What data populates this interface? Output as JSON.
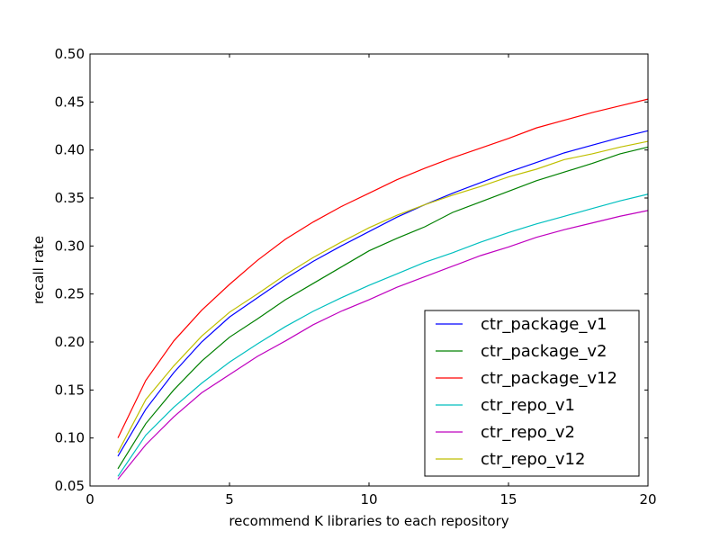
{
  "chart_data": {
    "type": "line",
    "xlabel": "recommend K libraries to each repository",
    "ylabel": "recall rate",
    "xlim": [
      0,
      20
    ],
    "ylim": [
      0.05,
      0.5
    ],
    "xticks": [
      0,
      5,
      10,
      15,
      20
    ],
    "xtick_labels": [
      "0",
      "5",
      "10",
      "15",
      "20"
    ],
    "yticks": [
      0.05,
      0.1,
      0.15,
      0.2,
      0.25,
      0.3,
      0.35,
      0.4,
      0.45,
      0.5
    ],
    "ytick_labels": [
      "0.05",
      "0.10",
      "0.15",
      "0.20",
      "0.25",
      "0.30",
      "0.35",
      "0.40",
      "0.45",
      "0.50"
    ],
    "grid": false,
    "legend_position": "lower-right",
    "x": [
      1,
      2,
      3,
      4,
      5,
      6,
      7,
      8,
      9,
      10,
      11,
      12,
      13,
      14,
      15,
      16,
      17,
      18,
      19,
      20
    ],
    "series": [
      {
        "name": "ctr_package_v1",
        "color": "#0000ff",
        "values": [
          0.081,
          0.13,
          0.168,
          0.2,
          0.226,
          0.246,
          0.266,
          0.284,
          0.3,
          0.315,
          0.33,
          0.343,
          0.355,
          0.366,
          0.377,
          0.387,
          0.397,
          0.405,
          0.413,
          0.42
        ]
      },
      {
        "name": "ctr_package_v2",
        "color": "#008000",
        "values": [
          0.068,
          0.115,
          0.15,
          0.18,
          0.205,
          0.224,
          0.244,
          0.261,
          0.278,
          0.295,
          0.308,
          0.32,
          0.335,
          0.346,
          0.357,
          0.368,
          0.377,
          0.386,
          0.396,
          0.403
        ]
      },
      {
        "name": "ctr_package_v12",
        "color": "#ff0000",
        "values": [
          0.1,
          0.16,
          0.201,
          0.233,
          0.26,
          0.285,
          0.307,
          0.325,
          0.341,
          0.355,
          0.369,
          0.381,
          0.392,
          0.402,
          0.412,
          0.423,
          0.431,
          0.439,
          0.446,
          0.453
        ]
      },
      {
        "name": "ctr_repo_v1",
        "color": "#00bfbf",
        "values": [
          0.06,
          0.103,
          0.132,
          0.157,
          0.179,
          0.198,
          0.216,
          0.232,
          0.246,
          0.259,
          0.271,
          0.283,
          0.293,
          0.304,
          0.314,
          0.323,
          0.331,
          0.339,
          0.347,
          0.354
        ]
      },
      {
        "name": "ctr_repo_v2",
        "color": "#bf00bf",
        "values": [
          0.057,
          0.093,
          0.122,
          0.147,
          0.166,
          0.185,
          0.201,
          0.218,
          0.232,
          0.244,
          0.257,
          0.268,
          0.279,
          0.29,
          0.299,
          0.309,
          0.317,
          0.324,
          0.331,
          0.337
        ]
      },
      {
        "name": "ctr_repo_v12",
        "color": "#bfbf00",
        "values": [
          0.085,
          0.14,
          0.175,
          0.206,
          0.231,
          0.25,
          0.27,
          0.288,
          0.304,
          0.319,
          0.332,
          0.343,
          0.353,
          0.362,
          0.372,
          0.38,
          0.39,
          0.396,
          0.403,
          0.409
        ]
      }
    ]
  }
}
